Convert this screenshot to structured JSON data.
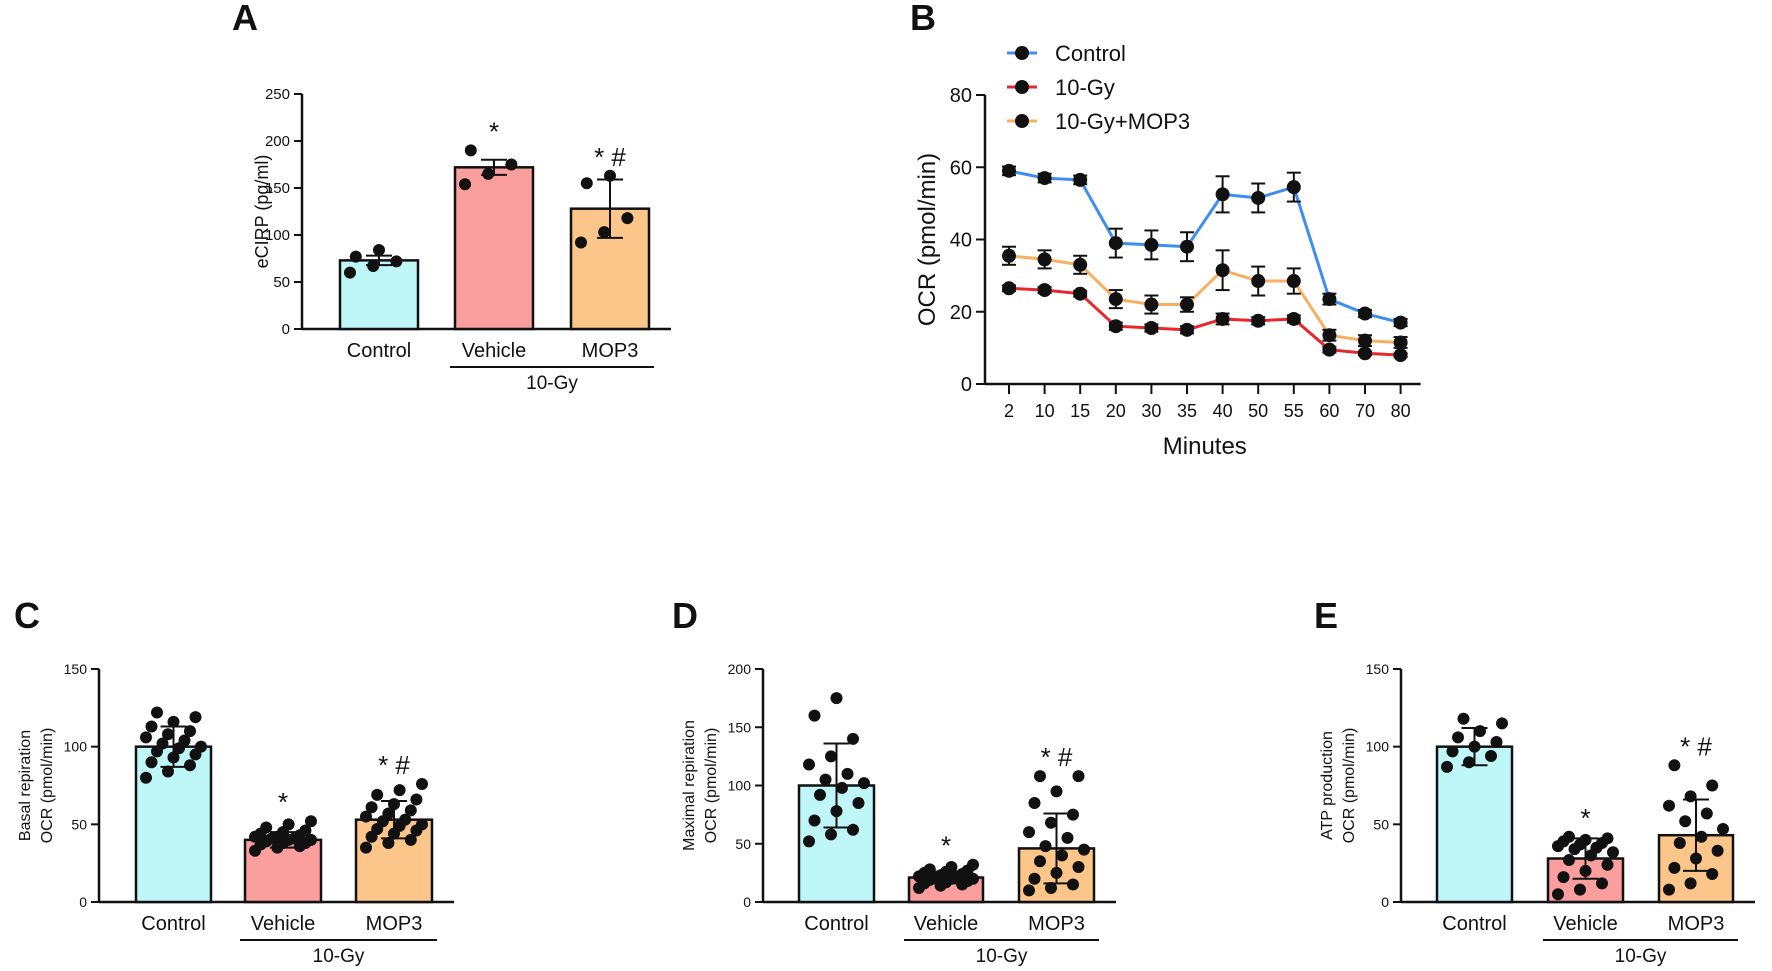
{
  "chart_data": [
    {
      "panel": "A",
      "type": "bar",
      "categories": [
        "Control",
        "Vehicle",
        "MOP3"
      ],
      "group_label": "10-Gy",
      "ylabel": "eCIRP (pg/ml)",
      "ylim": [
        0,
        250
      ],
      "yticks": [
        0,
        50,
        100,
        150,
        200,
        250
      ],
      "values": [
        73,
        172,
        128
      ],
      "errors": [
        5,
        8,
        31
      ],
      "points": [
        [
          60,
          67,
          72,
          77,
          84
        ],
        [
          154,
          165,
          175,
          190
        ],
        [
          92,
          103,
          118,
          155,
          163
        ]
      ],
      "significance": [
        "",
        "*",
        "*#"
      ],
      "colors": [
        "#bff7f9",
        "#fa9e9e",
        "#fcc589"
      ]
    },
    {
      "panel": "B",
      "type": "line",
      "x": [
        2,
        10,
        15,
        20,
        30,
        35,
        40,
        50,
        55,
        60,
        70,
        80
      ],
      "xlabel": "Minutes",
      "ylabel": "OCR (pmol/min)",
      "ylim": [
        0,
        80
      ],
      "yticks": [
        0,
        20,
        40,
        60,
        80
      ],
      "legend_position": "top-left",
      "series": [
        {
          "name": "Control",
          "color": "#3d8ef0",
          "values": [
            59,
            57,
            56.5,
            39,
            38.5,
            38,
            52.5,
            51.5,
            54.5,
            23.5,
            19.5,
            17
          ],
          "errors": [
            1.2,
            1.2,
            1.2,
            4,
            4,
            4,
            5,
            4,
            4,
            1.5,
            1,
            1
          ]
        },
        {
          "name": "10-Gy",
          "color": "#e8262b",
          "values": [
            26.5,
            26,
            25,
            16,
            15.5,
            15,
            18,
            17.5,
            18,
            9.5,
            8.5,
            8
          ],
          "errors": [
            0.8,
            0.8,
            0.8,
            1,
            1,
            1,
            1.5,
            1,
            1,
            0.8,
            0.5,
            0.5
          ]
        },
        {
          "name": "10-Gy+MOP3",
          "color": "#f7b061",
          "values": [
            35.5,
            34.5,
            33,
            23.5,
            22,
            22,
            31.5,
            28.5,
            28.5,
            13.5,
            12,
            11.5
          ],
          "errors": [
            2.5,
            2.5,
            2.5,
            2.5,
            2.5,
            2,
            5.5,
            4,
            3.5,
            1.5,
            1.5,
            1.5
          ]
        }
      ]
    },
    {
      "panel": "C",
      "type": "bar",
      "categories": [
        "Control",
        "Vehicle",
        "MOP3"
      ],
      "group_label": "10-Gy",
      "ylabel": [
        "Basal repiration",
        "OCR (pmol/min)"
      ],
      "ylim": [
        0,
        150
      ],
      "yticks": [
        0,
        50,
        100,
        150
      ],
      "values": [
        100,
        40,
        53
      ],
      "errors": [
        13,
        5,
        12
      ],
      "points": [
        [
          80,
          84,
          88,
          90,
          93,
          95,
          97,
          99,
          100,
          102,
          104,
          106,
          108,
          110,
          113,
          116,
          119,
          122
        ],
        [
          33,
          35,
          36,
          37,
          38,
          38,
          39,
          40,
          40,
          41,
          41,
          42,
          42,
          43,
          44,
          45,
          46,
          48,
          50,
          52
        ],
        [
          35,
          38,
          40,
          42,
          44,
          46,
          47,
          49,
          50,
          52,
          53,
          55,
          57,
          59,
          61,
          63,
          66,
          69,
          72,
          76
        ]
      ],
      "significance": [
        "",
        "*",
        "*#"
      ],
      "colors": [
        "#bff7f9",
        "#fa9e9e",
        "#fcc589"
      ]
    },
    {
      "panel": "D",
      "type": "bar",
      "categories": [
        "Control",
        "Vehicle",
        "MOP3"
      ],
      "group_label": "10-Gy",
      "ylabel": [
        "Maximal repiration",
        "OCR (pmol/min)"
      ],
      "ylim": [
        0,
        200
      ],
      "yticks": [
        0,
        50,
        100,
        150,
        200
      ],
      "values": [
        100,
        21,
        46
      ],
      "errors": [
        36,
        5,
        30
      ],
      "points": [
        [
          52,
          58,
          62,
          70,
          78,
          85,
          92,
          98,
          102,
          105,
          110,
          118,
          125,
          140,
          160,
          175
        ],
        [
          12,
          14,
          15,
          16,
          17,
          18,
          19,
          20,
          20,
          21,
          22,
          22,
          23,
          24,
          25,
          26,
          27,
          28,
          30,
          32
        ],
        [
          10,
          12,
          15,
          20,
          25,
          30,
          35,
          40,
          45,
          48,
          55,
          60,
          68,
          75,
          85,
          95,
          108,
          108
        ]
      ],
      "significance": [
        "",
        "*",
        "*#"
      ],
      "colors": [
        "#bff7f9",
        "#fa9e9e",
        "#fcc589"
      ]
    },
    {
      "panel": "E",
      "type": "bar",
      "categories": [
        "Control",
        "Vehicle",
        "MOP3"
      ],
      "group_label": "10-Gy",
      "ylabel": [
        "ATP production",
        "OCR (pmol/min)"
      ],
      "ylim": [
        0,
        150
      ],
      "yticks": [
        0,
        50,
        100,
        150
      ],
      "values": [
        100,
        28,
        43
      ],
      "errors": [
        12,
        13,
        23
      ],
      "points": [
        [
          87,
          90,
          94,
          97,
          100,
          103,
          106,
          110,
          115,
          118
        ],
        [
          5,
          8,
          12,
          16,
          20,
          24,
          27,
          30,
          32,
          34,
          35,
          36,
          37,
          38,
          39,
          40,
          41,
          42
        ],
        [
          8,
          12,
          18,
          22,
          28,
          33,
          38,
          42,
          47,
          52,
          57,
          62,
          68,
          75,
          88
        ]
      ],
      "significance": [
        "",
        "*",
        "*#"
      ],
      "colors": [
        "#bff7f9",
        "#fa9e9e",
        "#fcc589"
      ]
    }
  ]
}
